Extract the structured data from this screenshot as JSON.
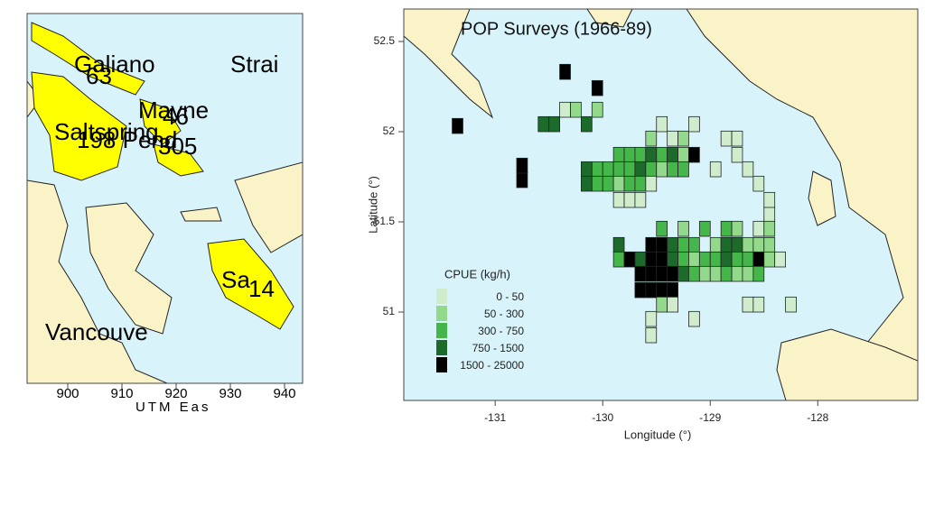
{
  "left_map": {
    "labels": [
      "Galiano",
      "63",
      "Strai",
      "Mayne",
      "46",
      "Saltspring",
      "198 Pend",
      "305",
      "Sa",
      "14",
      "Vancouve"
    ],
    "x_ticks": [
      "900",
      "910",
      "920",
      "930",
      "940"
    ],
    "x_axis_label": "UTM Eas"
  },
  "chart_data": {
    "type": "grid-map",
    "title": "POP Surveys (1966-89)",
    "x_label": "Longitude (°)",
    "y_label": "Latitude (°)",
    "xlim": [
      -131.85,
      -127.07
    ],
    "ylim": [
      50.51,
      52.68
    ],
    "xticks": [
      -131,
      -130,
      -129,
      -128
    ],
    "yticks": [
      51,
      51.5,
      52,
      52.5
    ],
    "legend_title": "CPUE (kg/h)",
    "classes": [
      {
        "name": "0 - 50",
        "color": "#cfeccc"
      },
      {
        "name": "50 - 300",
        "color": "#93d98c"
      },
      {
        "name": "300 - 750",
        "color": "#45b649"
      },
      {
        "name": "750 - 1500",
        "color": "#1c6b2b"
      },
      {
        "name": "1500 - 25000",
        "color": "#000000"
      }
    ],
    "cells": [
      [
        -131.4,
        51.99,
        4
      ],
      [
        -130.8,
        51.69,
        4
      ],
      [
        -130.8,
        51.77,
        4
      ],
      [
        -130.4,
        52.29,
        4
      ],
      [
        -130.1,
        52.2,
        4
      ],
      [
        -130.6,
        52.0,
        3
      ],
      [
        -130.5,
        52.0,
        3
      ],
      [
        -130.4,
        52.08,
        0
      ],
      [
        -130.3,
        52.08,
        1
      ],
      [
        -130.2,
        52.0,
        3
      ],
      [
        -130.1,
        52.08,
        1
      ],
      [
        -129.9,
        51.83,
        2
      ],
      [
        -129.8,
        51.83,
        2
      ],
      [
        -129.7,
        51.83,
        2
      ],
      [
        -129.6,
        51.83,
        3
      ],
      [
        -129.5,
        51.83,
        2
      ],
      [
        -129.4,
        51.83,
        3
      ],
      [
        -129.3,
        51.83,
        1
      ],
      [
        -129.2,
        51.83,
        4
      ],
      [
        -130.2,
        51.75,
        3
      ],
      [
        -130.1,
        51.75,
        2
      ],
      [
        -130.0,
        51.75,
        2
      ],
      [
        -129.9,
        51.75,
        2
      ],
      [
        -129.8,
        51.75,
        2
      ],
      [
        -129.7,
        51.75,
        3
      ],
      [
        -129.6,
        51.75,
        2
      ],
      [
        -129.5,
        51.75,
        1
      ],
      [
        -129.4,
        51.75,
        2
      ],
      [
        -129.3,
        51.75,
        2
      ],
      [
        -130.2,
        51.67,
        3
      ],
      [
        -130.1,
        51.67,
        2
      ],
      [
        -130.0,
        51.67,
        2
      ],
      [
        -129.9,
        51.67,
        1
      ],
      [
        -129.8,
        51.67,
        2
      ],
      [
        -129.7,
        51.67,
        2
      ],
      [
        -129.6,
        51.67,
        0
      ],
      [
        -129.9,
        51.58,
        0
      ],
      [
        -129.8,
        51.58,
        0
      ],
      [
        -129.7,
        51.58,
        0
      ],
      [
        -129.6,
        51.92,
        1
      ],
      [
        -129.4,
        51.92,
        0
      ],
      [
        -129.3,
        51.92,
        1
      ],
      [
        -128.9,
        51.92,
        0
      ],
      [
        -128.8,
        51.92,
        0
      ],
      [
        -129.5,
        52.0,
        0
      ],
      [
        -129.2,
        52.0,
        0
      ],
      [
        -129.0,
        51.75,
        0
      ],
      [
        -128.8,
        51.83,
        0
      ],
      [
        -128.7,
        51.75,
        0
      ],
      [
        -128.6,
        51.67,
        0
      ],
      [
        -128.5,
        51.5,
        0
      ],
      [
        -128.5,
        51.58,
        0
      ],
      [
        -129.9,
        51.33,
        3
      ],
      [
        -129.9,
        51.25,
        2
      ],
      [
        -129.5,
        51.42,
        2
      ],
      [
        -129.3,
        51.42,
        1
      ],
      [
        -129.1,
        51.42,
        2
      ],
      [
        -128.9,
        51.42,
        2
      ],
      [
        -128.8,
        51.42,
        1
      ],
      [
        -128.6,
        51.42,
        0
      ],
      [
        -128.5,
        51.42,
        1
      ],
      [
        -129.6,
        51.33,
        4
      ],
      [
        -129.5,
        51.33,
        4
      ],
      [
        -129.4,
        51.33,
        3
      ],
      [
        -129.3,
        51.33,
        2
      ],
      [
        -129.2,
        51.33,
        2
      ],
      [
        -129.0,
        51.33,
        1
      ],
      [
        -128.9,
        51.33,
        3
      ],
      [
        -128.8,
        51.33,
        3
      ],
      [
        -128.7,
        51.33,
        1
      ],
      [
        -128.6,
        51.33,
        1
      ],
      [
        -128.5,
        51.33,
        1
      ],
      [
        -129.8,
        51.25,
        4
      ],
      [
        -129.7,
        51.25,
        3
      ],
      [
        -129.6,
        51.25,
        4
      ],
      [
        -129.5,
        51.25,
        4
      ],
      [
        -129.4,
        51.25,
        3
      ],
      [
        -129.3,
        51.25,
        2
      ],
      [
        -129.2,
        51.25,
        1
      ],
      [
        -129.1,
        51.25,
        2
      ],
      [
        -129.0,
        51.25,
        2
      ],
      [
        -128.9,
        51.25,
        3
      ],
      [
        -128.8,
        51.25,
        2
      ],
      [
        -128.7,
        51.25,
        2
      ],
      [
        -128.6,
        51.25,
        4
      ],
      [
        -128.5,
        51.25,
        1
      ],
      [
        -128.4,
        51.25,
        0
      ],
      [
        -129.7,
        51.17,
        4
      ],
      [
        -129.6,
        51.17,
        4
      ],
      [
        -129.5,
        51.17,
        4
      ],
      [
        -129.4,
        51.17,
        4
      ],
      [
        -129.3,
        51.17,
        3
      ],
      [
        -129.2,
        51.17,
        2
      ],
      [
        -129.1,
        51.17,
        1
      ],
      [
        -129.0,
        51.17,
        1
      ],
      [
        -128.9,
        51.17,
        2
      ],
      [
        -128.8,
        51.17,
        1
      ],
      [
        -128.7,
        51.17,
        1
      ],
      [
        -128.6,
        51.17,
        2
      ],
      [
        -129.7,
        51.08,
        4
      ],
      [
        -129.6,
        51.08,
        4
      ],
      [
        -129.5,
        51.08,
        4
      ],
      [
        -129.4,
        51.08,
        4
      ],
      [
        -128.7,
        51.0,
        0
      ],
      [
        -128.6,
        51.0,
        0
      ],
      [
        -128.3,
        51.0,
        0
      ],
      [
        -129.5,
        51.0,
        1
      ],
      [
        -129.4,
        51.0,
        0
      ],
      [
        -129.6,
        50.92,
        0
      ],
      [
        -129.6,
        50.83,
        0
      ],
      [
        -129.2,
        50.92,
        0
      ]
    ]
  }
}
